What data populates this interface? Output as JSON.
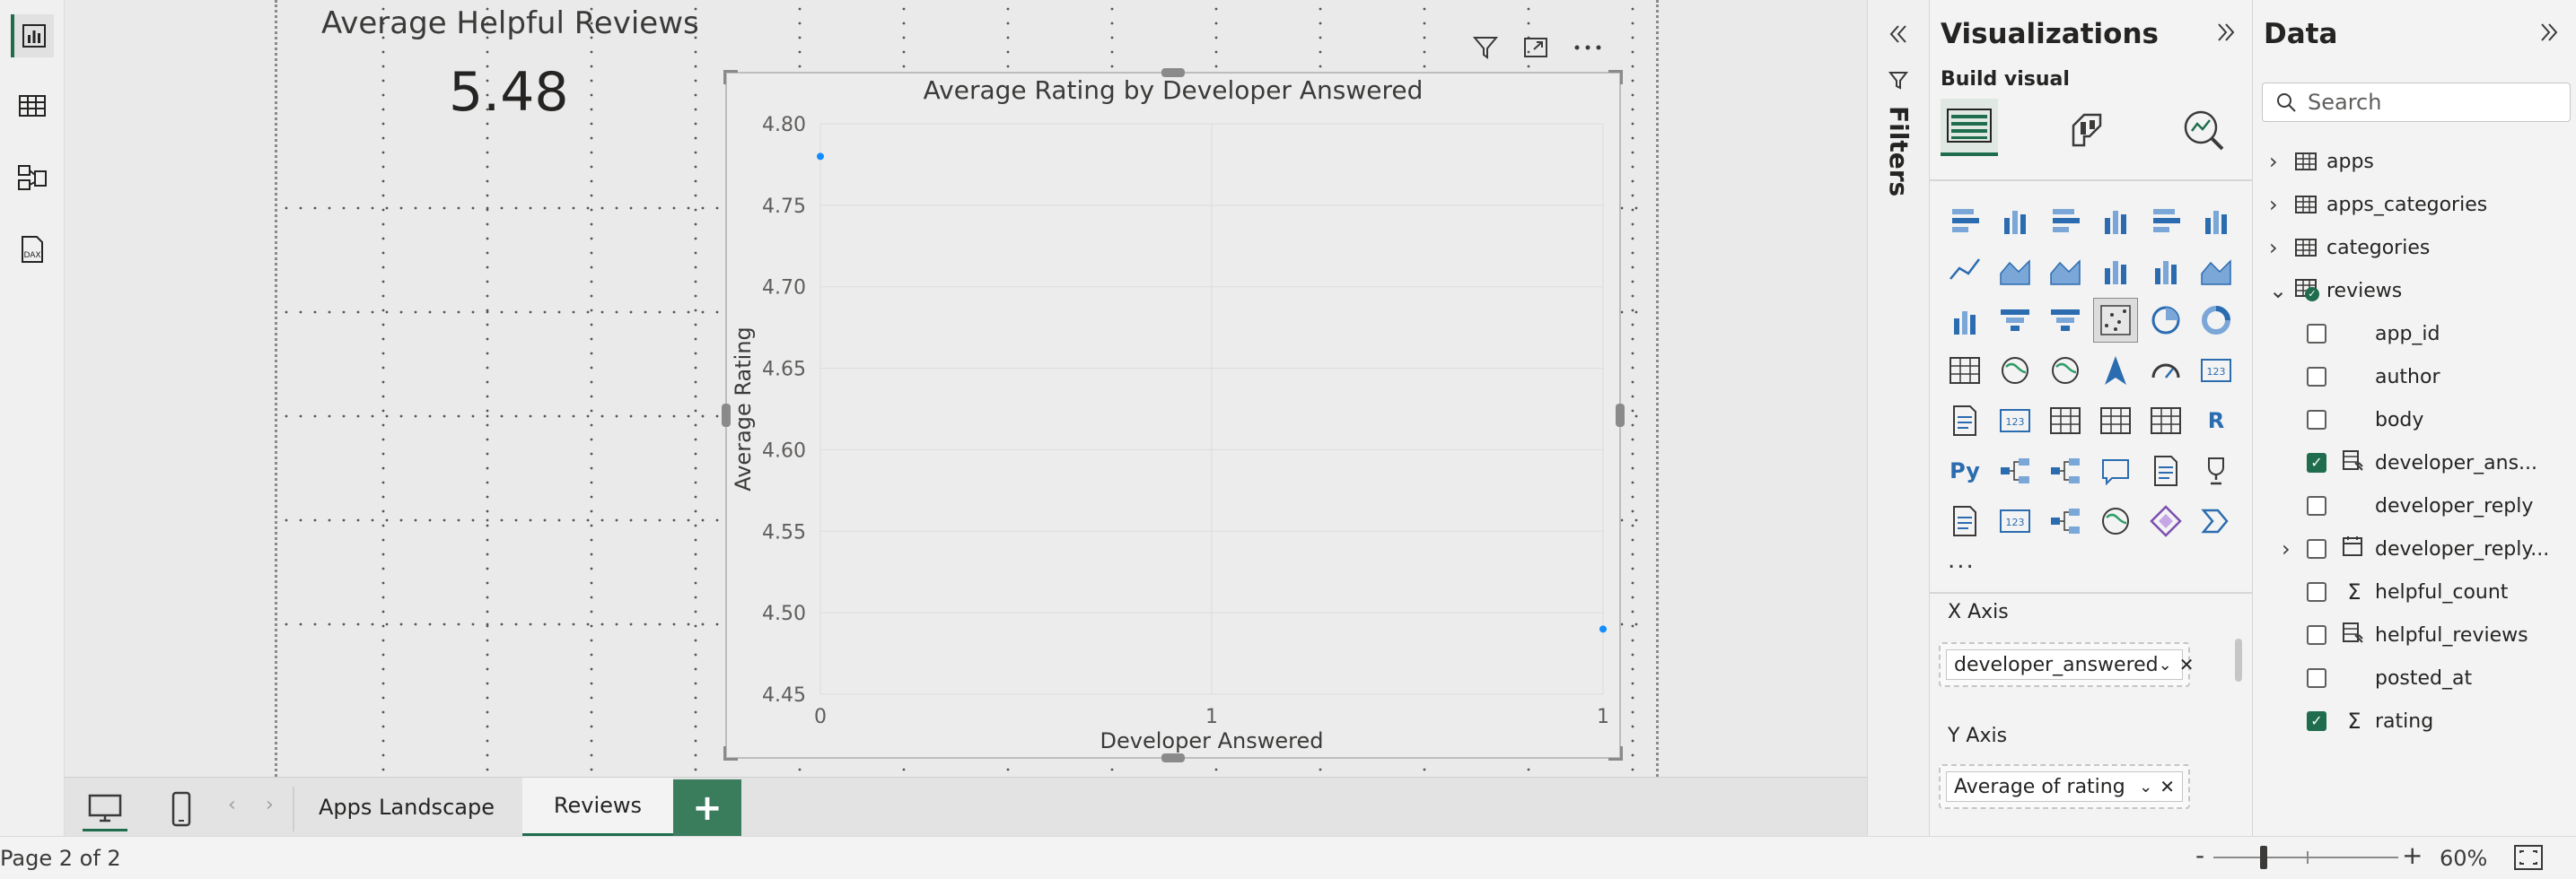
{
  "left_rail": {
    "items": [
      {
        "name": "report-view-icon",
        "active": true
      },
      {
        "name": "table-view-icon"
      },
      {
        "name": "model-view-icon"
      },
      {
        "name": "dax-query-icon",
        "label": "DAX"
      }
    ]
  },
  "canvas": {
    "kpi": {
      "title": "Average Helpful Reviews",
      "value": "5.48"
    },
    "chart": {
      "ylabel": "Average Rating",
      "xlabel": "Developer Answered"
    }
  },
  "chart_data": {
    "type": "scatter",
    "title": "Average Rating by Developer Answered",
    "xlabel": "Developer Answered",
    "ylabel": "Average Rating",
    "xlim": [
      0,
      1
    ],
    "ylim": [
      4.45,
      4.8
    ],
    "x_ticks": [
      "0",
      "1",
      "1"
    ],
    "y_ticks": [
      "4.80",
      "4.75",
      "4.70",
      "4.65",
      "4.60",
      "4.55",
      "4.50",
      "4.45"
    ],
    "points": [
      {
        "x": 0,
        "y": 4.78
      },
      {
        "x": 1,
        "y": 4.49
      }
    ],
    "grid": true,
    "color": "#118dff"
  },
  "filters": {
    "label": "Filters"
  },
  "visualizations": {
    "title": "Visualizations",
    "build_visual": "Build visual",
    "x_axis": {
      "label": "X Axis",
      "field": "developer_answered"
    },
    "y_axis": {
      "label": "Y Axis",
      "field": "Average of rating"
    },
    "more": "..."
  },
  "data": {
    "title": "Data",
    "search_placeholder": "Search",
    "tables": [
      {
        "name": "apps",
        "expanded": false
      },
      {
        "name": "apps_categories",
        "expanded": false
      },
      {
        "name": "categories",
        "expanded": false
      },
      {
        "name": "reviews",
        "expanded": true
      }
    ],
    "fields": [
      {
        "name": "app_id",
        "checked": false,
        "icon": ""
      },
      {
        "name": "author",
        "checked": false,
        "icon": ""
      },
      {
        "name": "body",
        "checked": false,
        "icon": ""
      },
      {
        "name": "developer_ans...",
        "checked": true,
        "icon": "calc"
      },
      {
        "name": "developer_reply",
        "checked": false,
        "icon": ""
      },
      {
        "name": "developer_reply...",
        "checked": false,
        "icon": "date",
        "expandable": true
      },
      {
        "name": "helpful_count",
        "checked": false,
        "icon": "sigma"
      },
      {
        "name": "helpful_reviews",
        "checked": false,
        "icon": "calc"
      },
      {
        "name": "posted_at",
        "checked": false,
        "icon": ""
      },
      {
        "name": "rating",
        "checked": true,
        "icon": "sigma"
      }
    ]
  },
  "tabs": {
    "items": [
      "Apps Landscape",
      "Reviews"
    ],
    "active": "Reviews",
    "add": "+"
  },
  "status": {
    "page": "Page 2 of 2",
    "zoom": "60%",
    "zoom_minus": "-",
    "zoom_plus": "+"
  },
  "colors": {
    "accent": "#1f6d4e",
    "point": "#118dff"
  }
}
